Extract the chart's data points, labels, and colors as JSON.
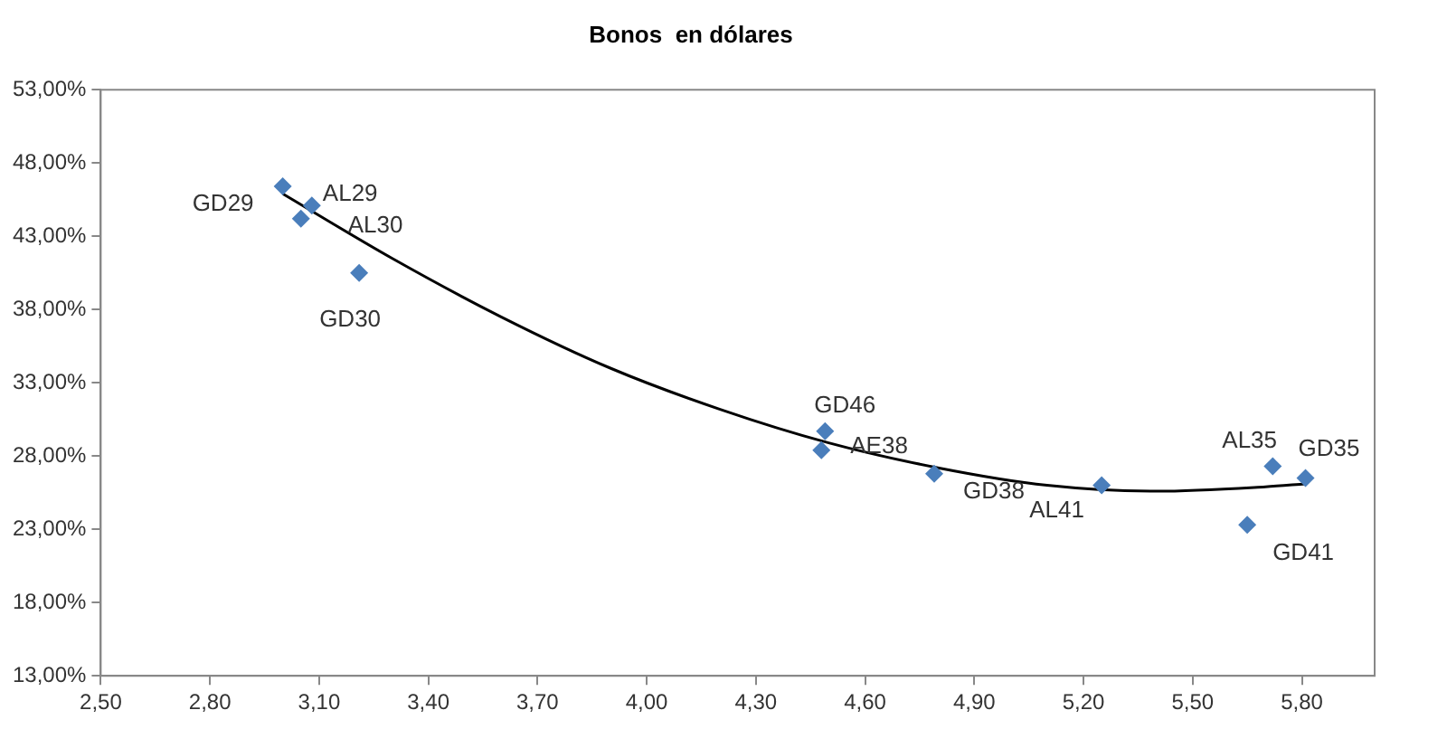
{
  "chart_data": {
    "type": "scatter",
    "title": "Bonos  en dólares",
    "xlim": [
      2.5,
      6.0
    ],
    "xticks": [
      {
        "value": 2.5,
        "label": "2,50"
      },
      {
        "value": 2.8,
        "label": "2,80"
      },
      {
        "value": 3.1,
        "label": "3,10"
      },
      {
        "value": 3.4,
        "label": "3,40"
      },
      {
        "value": 3.7,
        "label": "3,70"
      },
      {
        "value": 4.0,
        "label": "4,00"
      },
      {
        "value": 4.3,
        "label": "4,30"
      },
      {
        "value": 4.6,
        "label": "4,60"
      },
      {
        "value": 4.9,
        "label": "4,90"
      },
      {
        "value": 5.2,
        "label": "5,20"
      },
      {
        "value": 5.5,
        "label": "5,50"
      },
      {
        "value": 5.8,
        "label": "5,80"
      }
    ],
    "ylim": [
      13,
      53
    ],
    "yticks": [
      {
        "value": 13,
        "label": "13,00%"
      },
      {
        "value": 18,
        "label": "18,00%"
      },
      {
        "value": 23,
        "label": "23,00%"
      },
      {
        "value": 28,
        "label": "28,00%"
      },
      {
        "value": 33,
        "label": "33,00%"
      },
      {
        "value": 38,
        "label": "38,00%"
      },
      {
        "value": 43,
        "label": "43,00%"
      },
      {
        "value": 48,
        "label": "48,00%"
      },
      {
        "value": 53,
        "label": "53,00%"
      }
    ],
    "grid": false,
    "legend": false,
    "marker": "diamond",
    "series": [
      {
        "color": "#4a7ebb",
        "x": [
          3.0,
          3.08,
          3.05,
          3.21,
          4.49,
          4.48,
          4.79,
          5.25,
          5.72,
          5.81,
          5.65
        ],
        "values": [
          46.4,
          45.1,
          44.2,
          40.5,
          29.7,
          28.4,
          26.8,
          26.0,
          27.3,
          26.5,
          23.3
        ]
      },
      {
        "type": "line",
        "color": "#000000",
        "line_style": "solid",
        "marker": "none",
        "x": [
          3.0,
          3.3,
          3.6,
          3.9,
          4.2,
          4.5,
          4.8,
          5.1,
          5.4,
          5.7,
          5.81
        ],
        "values": [
          45.9,
          41.5,
          37.5,
          34.0,
          31.2,
          28.9,
          27.2,
          26.0,
          25.6,
          25.9,
          26.1
        ]
      }
    ],
    "annotations": [
      {
        "text": "GD29",
        "x": 3.0,
        "y": 46.4
      },
      {
        "text": "AL29",
        "x": 3.08,
        "y": 45.1
      },
      {
        "text": "AL30",
        "x": 3.05,
        "y": 44.2
      },
      {
        "text": "GD30",
        "x": 3.21,
        "y": 40.5
      },
      {
        "text": "GD46",
        "x": 4.49,
        "y": 29.7
      },
      {
        "text": "AE38",
        "x": 4.48,
        "y": 28.4
      },
      {
        "text": "GD38",
        "x": 4.79,
        "y": 26.8
      },
      {
        "text": "AL41",
        "x": 5.25,
        "y": 26.0
      },
      {
        "text": "AL35",
        "x": 5.72,
        "y": 27.3
      },
      {
        "text": "GD35",
        "x": 5.81,
        "y": 26.5
      },
      {
        "text": "GD41",
        "x": 5.65,
        "y": 23.3
      }
    ]
  }
}
